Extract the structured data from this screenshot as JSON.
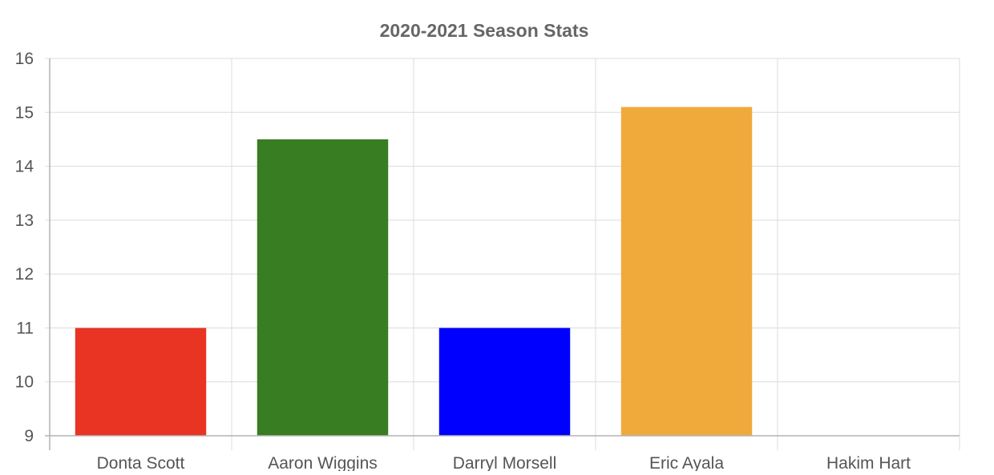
{
  "chart_data": {
    "type": "bar",
    "title": "2020-2021 Season Stats",
    "xlabel": "",
    "ylabel": "",
    "categories": [
      "Donta Scott",
      "Aaron Wiggins",
      "Darryl Morsell",
      "Eric Ayala",
      "Hakim Hart"
    ],
    "values": [
      11,
      14.5,
      11,
      15.1,
      9
    ],
    "colors": [
      "#e93323",
      "#387d21",
      "#0000ff",
      "#f0aa3c",
      "#999999"
    ],
    "ylim": [
      9,
      16
    ],
    "yticks": [
      "9",
      "10",
      "11",
      "12",
      "13",
      "14",
      "15",
      "16"
    ],
    "grid": true,
    "legend": "none"
  }
}
